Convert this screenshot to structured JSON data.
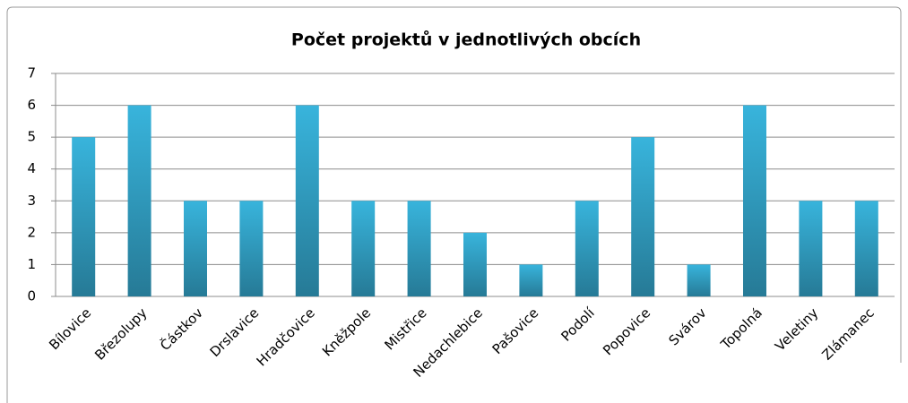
{
  "chart_data": {
    "type": "bar",
    "title": "Počet projektů v jednotlivých obcích",
    "categories": [
      "Bílovice",
      "Březolupy",
      "Částkov",
      "Drslavice",
      "Hradčovice",
      "Kněžpole",
      "Mistřice",
      "Nedachlebice",
      "Pašovice",
      "Podolí",
      "Popovice",
      "Svárov",
      "Topolná",
      "Veletiny",
      "Zlámanec"
    ],
    "values": [
      5,
      6,
      3,
      3,
      6,
      3,
      3,
      2,
      1,
      3,
      5,
      1,
      6,
      3,
      3
    ],
    "color": "#38b4dc",
    "ylim": [
      0,
      7
    ],
    "yticks": [
      0,
      1,
      2,
      3,
      4,
      5,
      6,
      7
    ],
    "grid": true
  }
}
